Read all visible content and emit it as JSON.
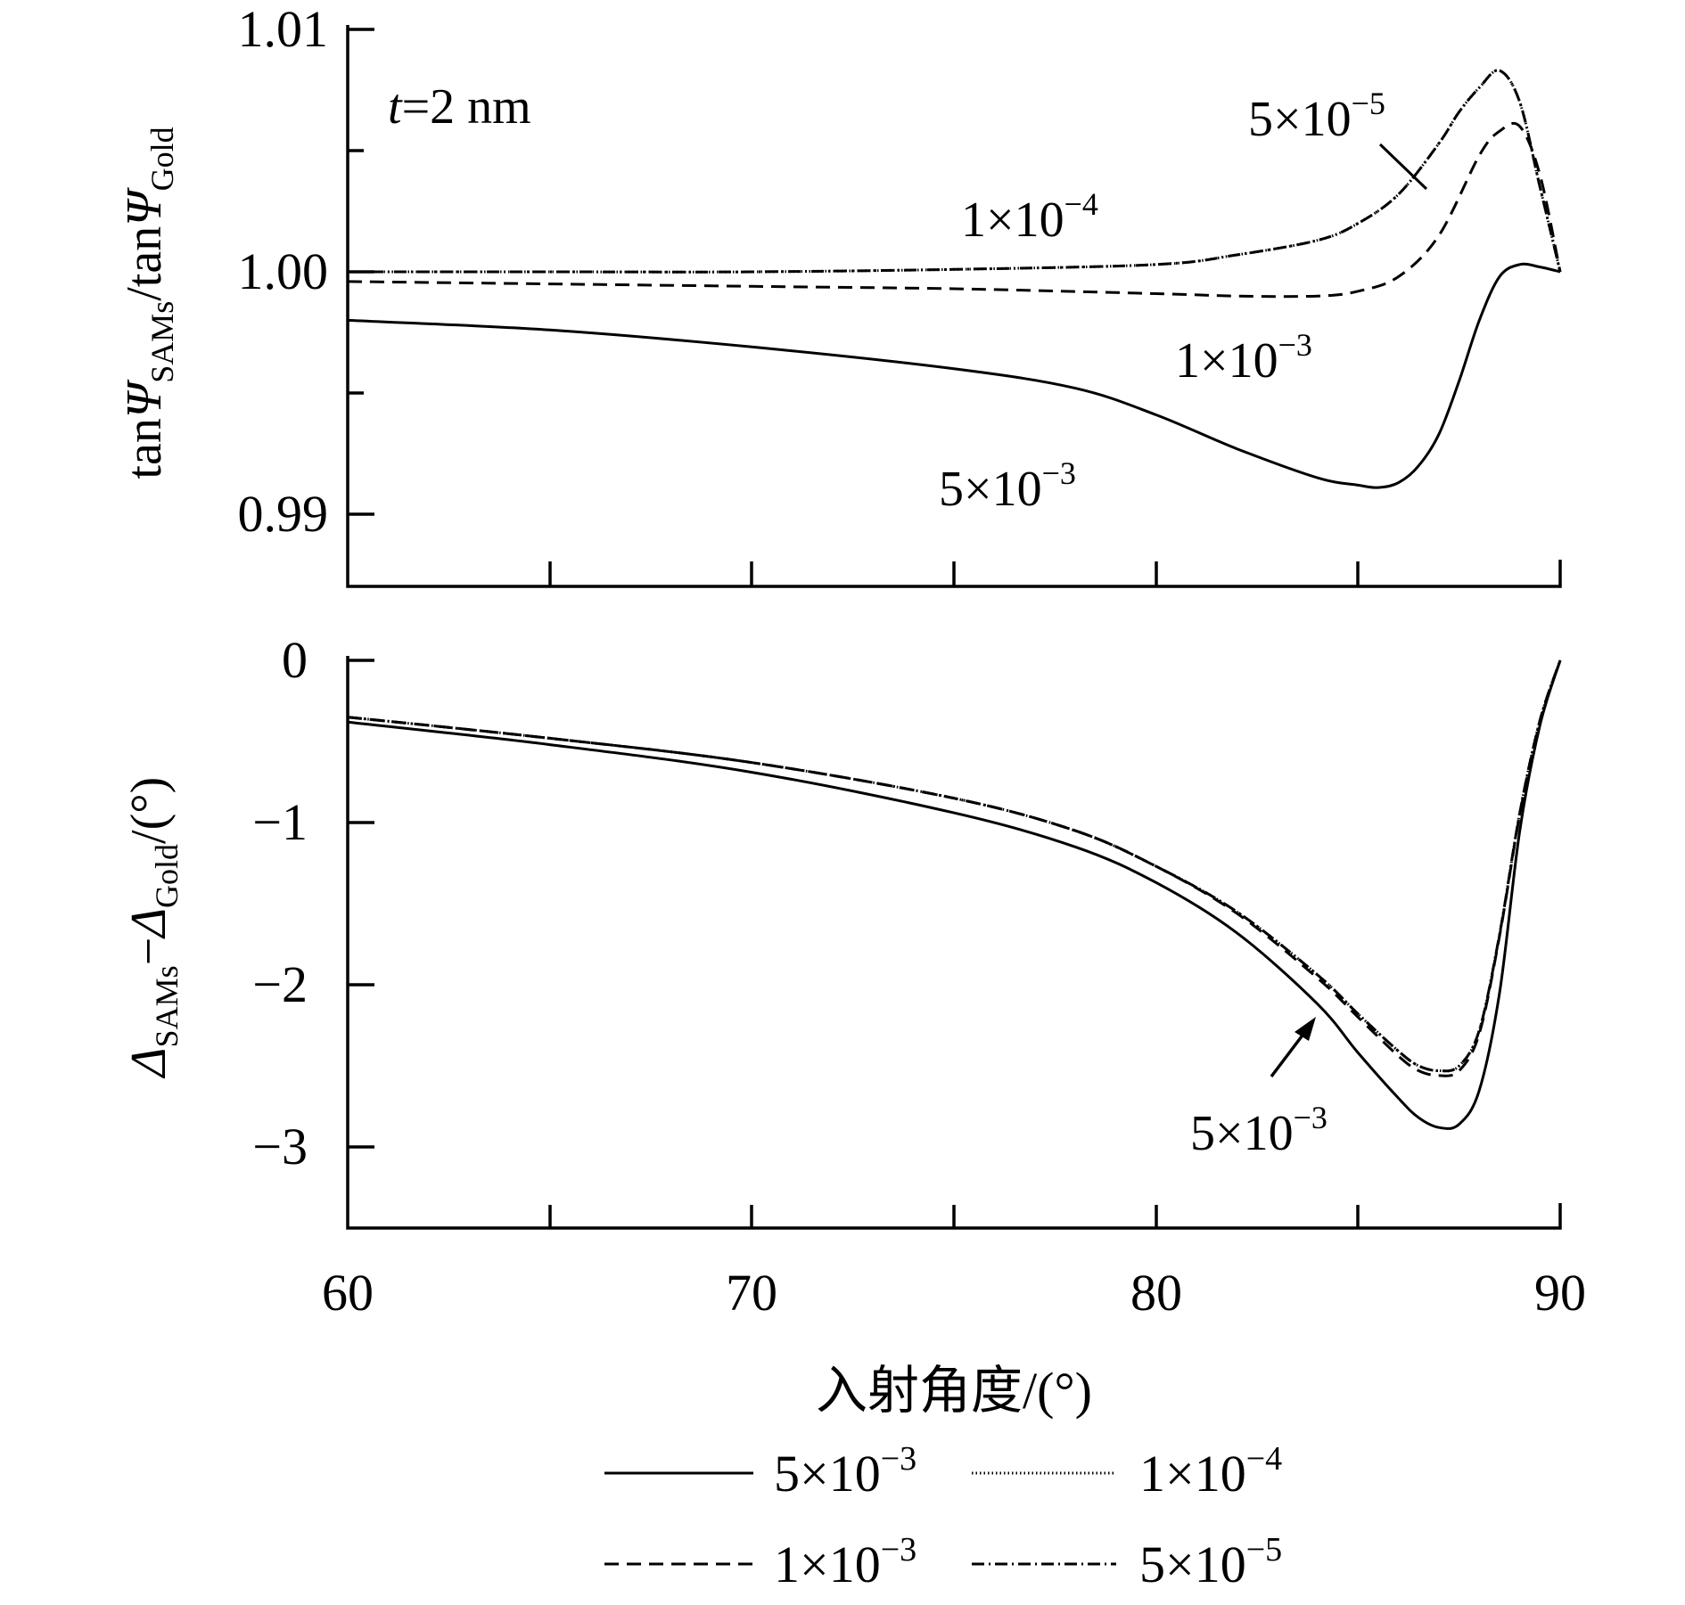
{
  "chart_data": [
    {
      "type": "line",
      "ylabel": "tanΨ_SAMs/tanΨ_Gold",
      "xlim": [
        60,
        90
      ],
      "ylim": [
        0.987,
        1.0105
      ],
      "yticks": [
        "1.01",
        "1.00",
        "0.99"
      ],
      "x_minor_ticks": [
        65,
        75,
        85
      ],
      "annotation_title": "t=2 nm",
      "series": [
        {
          "name": "5×10−3",
          "dash": "solid",
          "x": [
            60,
            65,
            70,
            75,
            78,
            80,
            82,
            84,
            85,
            85.5,
            86,
            86.5,
            87,
            87.5,
            88,
            88.5,
            89,
            89.5,
            90
          ],
          "y": [
            0.998,
            0.9976,
            0.9969,
            0.996,
            0.9952,
            0.9941,
            0.9927,
            0.9915,
            0.9912,
            0.9911,
            0.9913,
            0.992,
            0.9933,
            0.9955,
            0.998,
            0.9998,
            1.0003,
            1.0002,
            1.0
          ]
        },
        {
          "name": "1×10−3",
          "dash": "dashed",
          "x": [
            60,
            65,
            70,
            75,
            80,
            82,
            84,
            85,
            86,
            87,
            88,
            88.5,
            89,
            89.5,
            90
          ],
          "y": [
            0.9996,
            0.9995,
            0.9994,
            0.9993,
            0.9991,
            0.999,
            0.999,
            0.9992,
            0.9998,
            1.0015,
            1.0048,
            1.0058,
            1.006,
            1.004,
            1.0
          ]
        },
        {
          "name": "1×10−4",
          "dash": "dotted",
          "x": [
            60,
            65,
            70,
            75,
            80,
            82,
            84,
            85,
            86,
            87,
            87.5,
            88,
            88.5,
            89,
            89.5,
            90
          ],
          "y": [
            1.0,
            1.0,
            1.0,
            1.0001,
            1.0003,
            1.0007,
            1.0013,
            1.002,
            1.0032,
            1.0053,
            1.0066,
            1.0076,
            1.0083,
            1.007,
            1.0035,
            1.0
          ]
        },
        {
          "name": "5×10−5",
          "dash": "dashdot",
          "x": [
            60,
            65,
            70,
            75,
            80,
            82,
            84,
            85,
            86,
            87,
            87.5,
            88,
            88.5,
            89,
            89.5,
            90
          ],
          "y": [
            1.0,
            1.0,
            1.0,
            1.0001,
            1.0003,
            1.0007,
            1.0013,
            1.002,
            1.0032,
            1.0053,
            1.0066,
            1.0076,
            1.0083,
            1.007,
            1.0035,
            1.0
          ]
        }
      ],
      "labels": [
        "5×10−5",
        "1×10−4",
        "1×10−3",
        "5×10−3"
      ]
    },
    {
      "type": "line",
      "ylabel": "Δ_SAMs−Δ_Gold/(°)",
      "xlabel": "入射角度/(°)",
      "xlim": [
        60,
        90
      ],
      "ylim": [
        -3.5,
        0
      ],
      "xticks": [
        "60",
        "70",
        "80",
        "90"
      ],
      "yticks": [
        "0",
        "−1",
        "−2",
        "−3"
      ],
      "x_minor_ticks": [
        65,
        75,
        85
      ],
      "series": [
        {
          "name": "5×10−3",
          "dash": "solid",
          "x": [
            60,
            65,
            70,
            75,
            78,
            80,
            82,
            84,
            85,
            86,
            86.5,
            87,
            87.5,
            88,
            88.5,
            89,
            89.5,
            90
          ],
          "y": [
            -0.38,
            -0.52,
            -0.69,
            -0.94,
            -1.15,
            -1.37,
            -1.68,
            -2.12,
            -2.42,
            -2.7,
            -2.82,
            -2.88,
            -2.86,
            -2.65,
            -2.05,
            -1.05,
            -0.4,
            0.0
          ]
        },
        {
          "name": "1×10−3",
          "dash": "dashed",
          "x": [
            60,
            65,
            70,
            75,
            78,
            80,
            82,
            84,
            85,
            86,
            86.5,
            87,
            87.5,
            88,
            88.5,
            89,
            89.5,
            90
          ],
          "y": [
            -0.35,
            -0.48,
            -0.63,
            -0.85,
            -1.05,
            -1.27,
            -1.56,
            -1.96,
            -2.2,
            -2.44,
            -2.53,
            -2.56,
            -2.53,
            -2.3,
            -1.7,
            -0.95,
            -0.38,
            0.0
          ]
        },
        {
          "name": "1×10−4",
          "dash": "dotted",
          "x": [
            60,
            65,
            70,
            75,
            78,
            80,
            82,
            84,
            85,
            86,
            86.5,
            87,
            87.5,
            88,
            88.5,
            89,
            89.5,
            90
          ],
          "y": [
            -0.35,
            -0.48,
            -0.63,
            -0.85,
            -1.05,
            -1.27,
            -1.55,
            -1.94,
            -2.18,
            -2.41,
            -2.5,
            -2.53,
            -2.5,
            -2.28,
            -1.69,
            -0.94,
            -0.37,
            0.0
          ]
        },
        {
          "name": "5×10−5",
          "dash": "dashdot",
          "x": [
            60,
            65,
            70,
            75,
            78,
            80,
            82,
            84,
            85,
            86,
            86.5,
            87,
            87.5,
            88,
            88.5,
            89,
            89.5,
            90
          ],
          "y": [
            -0.35,
            -0.48,
            -0.63,
            -0.85,
            -1.05,
            -1.27,
            -1.55,
            -1.94,
            -2.18,
            -2.41,
            -2.5,
            -2.53,
            -2.5,
            -2.28,
            -1.69,
            -0.94,
            -0.37,
            0.0
          ]
        }
      ],
      "labels": [
        "5×10−3"
      ]
    }
  ],
  "legend": [
    {
      "label": "5×10−3",
      "dash": "solid"
    },
    {
      "label": "1×10−4",
      "dash": "dotted"
    },
    {
      "label": "1×10−3",
      "dash": "dashed"
    },
    {
      "label": "5×10−5",
      "dash": "dashdot"
    }
  ]
}
